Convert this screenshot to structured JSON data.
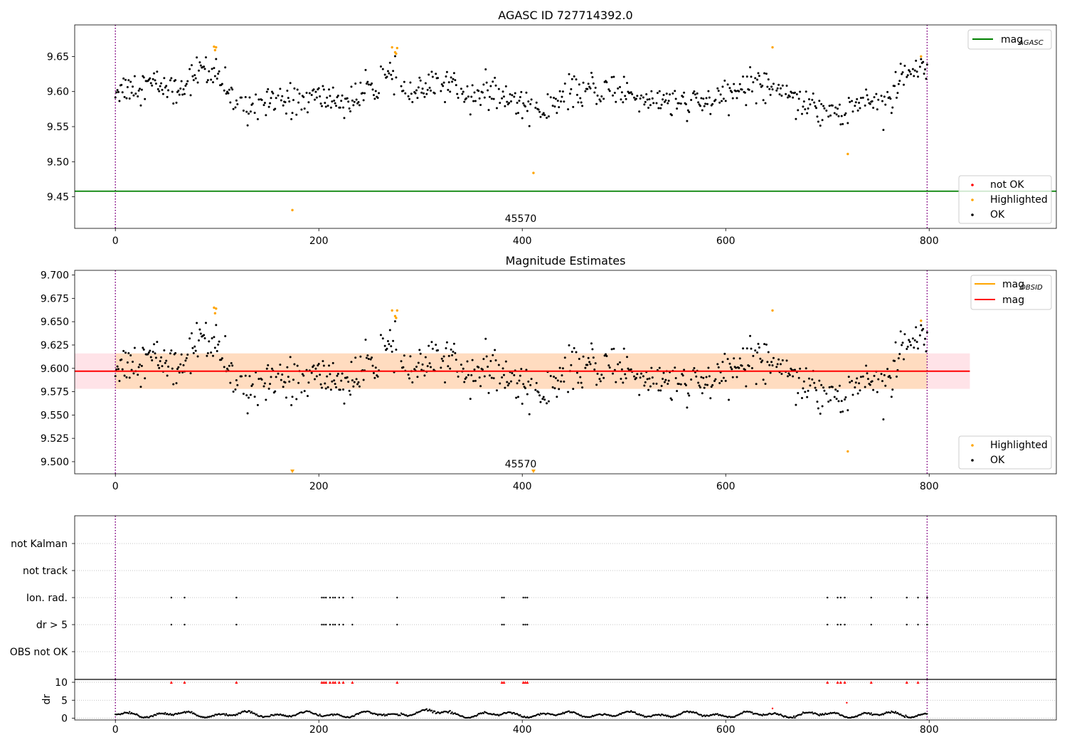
{
  "figure": {
    "title": "AGASC ID 727714392.0",
    "title2": "Magnitude Estimates"
  },
  "colors": {
    "ok": "#000000",
    "highlighted": "#ffa500",
    "not_ok": "#ff0000",
    "agasc_line": "#008000",
    "mag_line": "#ff0000",
    "mag_obsid": "#ffa500",
    "band_fill": "#ffc0cb",
    "band_inner": "#ffdab9",
    "obs_vline": "#800080",
    "grid": "#b0b0b0"
  },
  "chart_data": [
    {
      "type": "scatter",
      "title": "AGASC ID 727714392.0",
      "xlim": [
        -40,
        925
      ],
      "ylim": [
        9.405,
        9.695
      ],
      "xticks": [
        0,
        200,
        400,
        600,
        800
      ],
      "yticks": [
        9.45,
        9.5,
        9.55,
        9.6,
        9.65
      ],
      "ytick_labels": [
        "9.45",
        "9.50",
        "9.55",
        "9.60",
        "9.65"
      ],
      "xtick_labels": [
        "0",
        "200",
        "400",
        "600",
        "800"
      ],
      "horizontal_line": {
        "name": "mag_AGASC",
        "y": 9.458
      },
      "obsid_lines": [
        0,
        798
      ],
      "obsid_label": {
        "text": "45570",
        "x": 399
      },
      "highlighted": [
        [
          97,
          9.664
        ],
        [
          98,
          9.659
        ],
        [
          99,
          9.663
        ],
        [
          272,
          9.663
        ],
        [
          275,
          9.656
        ],
        [
          276,
          9.654
        ],
        [
          277,
          9.662
        ],
        [
          646,
          9.663
        ],
        [
          792,
          9.65
        ],
        [
          174,
          9.431
        ],
        [
          411,
          9.484
        ],
        [
          720,
          9.511
        ]
      ],
      "legend_upper": [
        {
          "label": "mag",
          "sub": "AGASC",
          "marker": "line"
        }
      ],
      "legend_lower": [
        {
          "label": "not OK",
          "marker": "dot-red"
        },
        {
          "label": "Highlighted",
          "marker": "dot-orange"
        },
        {
          "label": "OK",
          "marker": "dot-black"
        }
      ],
      "legend_positions": {
        "upper": "upper right",
        "lower": "lower right"
      }
    },
    {
      "type": "scatter",
      "title": "Magnitude Estimates",
      "xlim": [
        -40,
        925
      ],
      "ylim": [
        9.487,
        9.705
      ],
      "xticks": [
        0,
        200,
        400,
        600,
        800
      ],
      "xtick_labels": [
        "0",
        "200",
        "400",
        "600",
        "800"
      ],
      "yticks": [
        9.5,
        9.525,
        9.55,
        9.575,
        9.6,
        9.625,
        9.65,
        9.675,
        9.7
      ],
      "ytick_labels": [
        "9.500",
        "9.525",
        "9.550",
        "9.575",
        "9.600",
        "9.625",
        "9.650",
        "9.675",
        "9.700"
      ],
      "mag_line": {
        "name": "mag",
        "y": 9.597,
        "x_start": -40,
        "x_end": 840
      },
      "band": {
        "y0": 9.578,
        "y1": 9.616,
        "x_start": -40,
        "x_end": 840
      },
      "band_inner": {
        "x_start": 0,
        "x_end": 798
      },
      "obsid_lines": [
        0,
        798
      ],
      "obsid_label": {
        "text": "45570",
        "x": 399
      },
      "highlighted": [
        [
          97,
          9.665
        ],
        [
          98,
          9.659
        ],
        [
          99,
          9.664
        ],
        [
          272,
          9.662
        ],
        [
          275,
          9.656
        ],
        [
          276,
          9.654
        ],
        [
          277,
          9.662
        ],
        [
          646,
          9.662
        ],
        [
          792,
          9.651
        ],
        [
          720,
          9.511
        ]
      ],
      "clipped_low": [
        174,
        411
      ],
      "legend_upper": [
        {
          "label": "mag",
          "sub": "OBSID",
          "marker": "line-orange"
        },
        {
          "label": "mag",
          "sub": "",
          "marker": "line-red"
        }
      ],
      "legend_lower": [
        {
          "label": "Highlighted",
          "marker": "dot-orange"
        },
        {
          "label": "OK",
          "marker": "dot-black"
        }
      ],
      "legend_positions": {
        "upper": "upper right",
        "lower": "lower right"
      }
    },
    {
      "type": "scatter",
      "title": "",
      "categories": [
        "not Kalman",
        "not track",
        "Ion. rad.",
        "dr > 5",
        "OBS not OK"
      ],
      "xlim": [
        -40,
        925
      ],
      "flagged_x": [
        55,
        68,
        119,
        203,
        205,
        207,
        211,
        214,
        216,
        220,
        224,
        233,
        277,
        380,
        382,
        401,
        403,
        405,
        700,
        710,
        713,
        717,
        743,
        778,
        789,
        798
      ]
    },
    {
      "type": "line",
      "title": "",
      "ylabel": "dr",
      "xlim": [
        -40,
        925
      ],
      "ylim": [
        -0.5,
        10.8
      ],
      "yticks": [
        0,
        5,
        10
      ],
      "ytick_labels": [
        "0",
        "5",
        "10"
      ],
      "xticks": [
        0,
        200,
        400,
        600,
        800
      ],
      "xtick_labels": [
        "0",
        "200",
        "400",
        "600",
        "800"
      ],
      "red_at_10": [
        55,
        68,
        119,
        203,
        205,
        207,
        211,
        214,
        216,
        220,
        224,
        233,
        277,
        380,
        382,
        401,
        403,
        405,
        700,
        710,
        713,
        717,
        743,
        778,
        789
      ],
      "red_other": [
        [
          646,
          2.7
        ],
        [
          719,
          4.3
        ]
      ]
    }
  ]
}
